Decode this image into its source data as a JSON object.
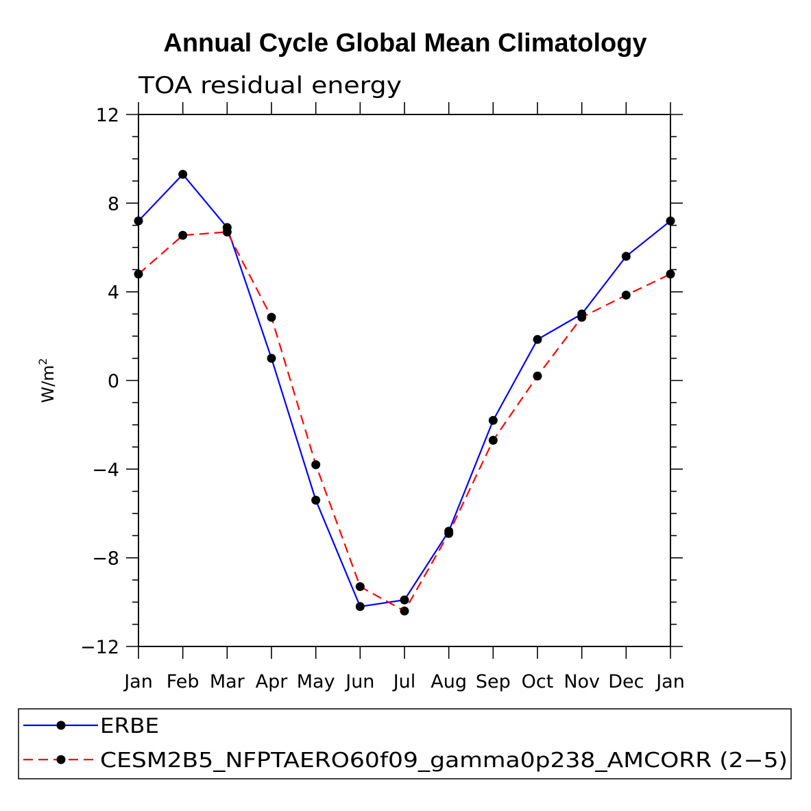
{
  "chart_data": {
    "type": "line",
    "title": "Annual Cycle Global Mean Climatology",
    "subtitle": "TOA residual energy",
    "ylabel": "W/m",
    "ylabel_superscript": "2",
    "xlabel": "",
    "ylim": [
      -12,
      12
    ],
    "yticks": [
      -12,
      -8,
      -4,
      0,
      4,
      8,
      12
    ],
    "ytick_labels": [
      "−12",
      "−8",
      "−4",
      "0",
      "4",
      "8",
      "12"
    ],
    "categories": [
      "Jan",
      "Feb",
      "Mar",
      "Apr",
      "May",
      "Jun",
      "Jul",
      "Aug",
      "Sep",
      "Oct",
      "Nov",
      "Dec",
      "Jan"
    ],
    "series": [
      {
        "name": "ERBE",
        "color": "#0000ff",
        "dash": "solid",
        "values": [
          7.2,
          9.3,
          6.9,
          1.0,
          -5.4,
          -10.2,
          -9.9,
          -6.8,
          -1.8,
          1.85,
          3.0,
          5.6,
          7.2
        ]
      },
      {
        "name": "CESM2B5_NFPTAERO60f09_gamma0p238_AMCORR (2−5)",
        "color": "#ff0000",
        "dash": "dashed",
        "values": [
          4.8,
          6.55,
          6.7,
          2.85,
          -3.8,
          -9.3,
          -10.4,
          -6.9,
          -2.7,
          0.2,
          2.85,
          3.85,
          4.8
        ]
      }
    ],
    "legend_position": "bottom"
  }
}
